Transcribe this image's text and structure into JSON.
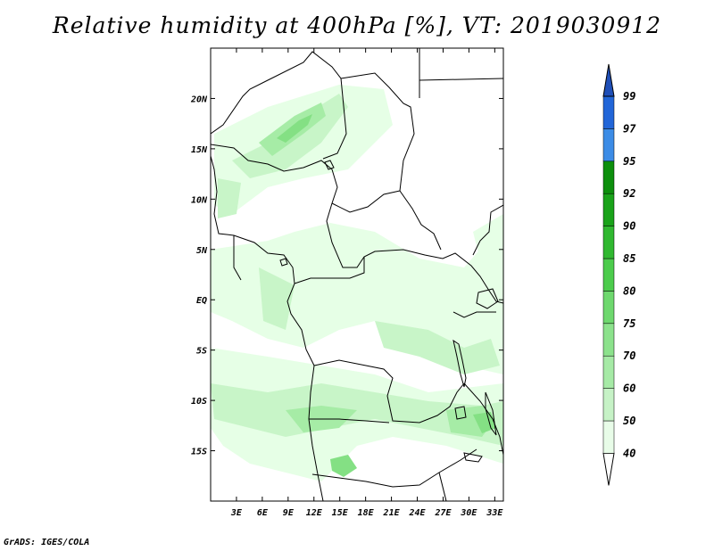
{
  "title": "Relative humidity at 400hPa [%], VT: 2019030912",
  "footer": "GrADS: IGES/COLA",
  "map": {
    "lon_range": [
      0,
      34
    ],
    "lat_range": [
      -20,
      25
    ],
    "x_ticks": [
      "3E",
      "6E",
      "9E",
      "12E",
      "15E",
      "18E",
      "21E",
      "24E",
      "27E",
      "30E",
      "33E"
    ],
    "y_ticks": [
      "20N",
      "15N",
      "10N",
      "5N",
      "EQ",
      "5S",
      "10S",
      "15S"
    ],
    "field_colors": {
      "40": "#e6ffe6",
      "50": "#c8f5c8",
      "60": "#a6eca6",
      "70": "#84e084"
    }
  },
  "colorbar": {
    "levels": [
      "40",
      "50",
      "60",
      "70",
      "75",
      "80",
      "85",
      "90",
      "92",
      "95",
      "97",
      "99"
    ],
    "colors": [
      "#ffffff",
      "#e8fce8",
      "#c6f2c6",
      "#a6eaa6",
      "#8ce28c",
      "#6ed86e",
      "#4ccc4c",
      "#30b830",
      "#1aa31a",
      "#0d8f0d",
      "#3c8ce6",
      "#2266d8",
      "#1f4fb8"
    ]
  }
}
